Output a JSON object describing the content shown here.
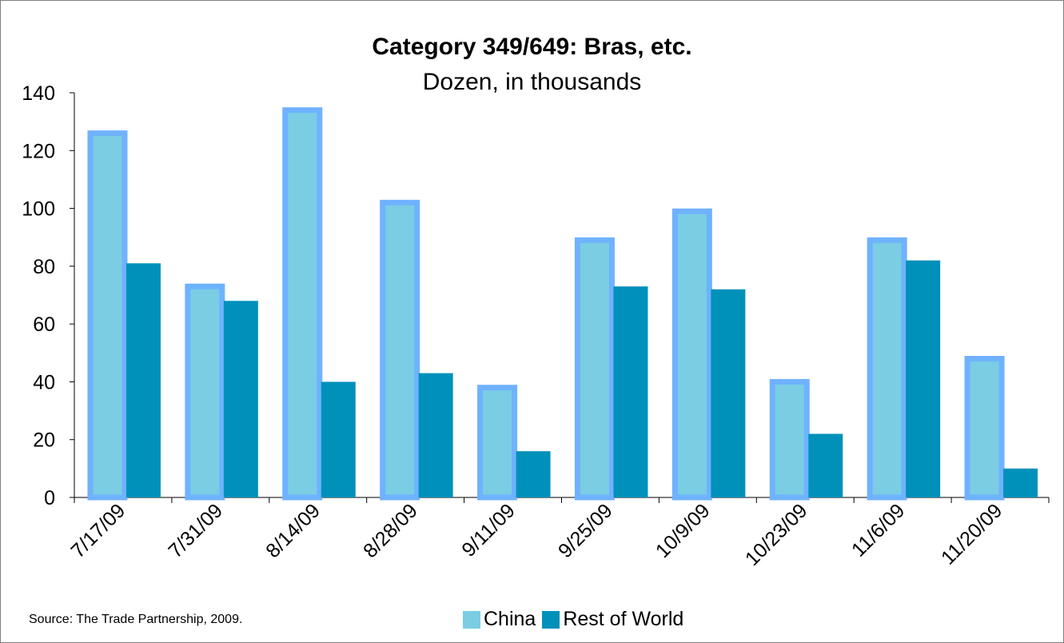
{
  "chart_data": {
    "type": "bar",
    "title": "Category 349/649: Bras, etc.",
    "subtitle": "Dozen, in thousands",
    "categories": [
      "7/17/09",
      "7/31/09",
      "8/14/09",
      "8/28/09",
      "9/11/09",
      "9/25/09",
      "10/9/09",
      "10/23/09",
      "11/6/09",
      "11/20/09"
    ],
    "series": [
      {
        "name": "China",
        "color": "#7acde3",
        "values": [
          126,
          73,
          134,
          102,
          38,
          89,
          99,
          40,
          89,
          48
        ]
      },
      {
        "name": "Rest of World",
        "color": "#0091bb",
        "values": [
          81,
          68,
          40,
          43,
          16,
          73,
          72,
          22,
          82,
          10
        ]
      }
    ],
    "ylim": [
      0,
      140
    ],
    "yticks": [
      "0",
      "20",
      "40",
      "60",
      "80",
      "100",
      "120",
      "140"
    ],
    "grid": false,
    "legend_position": "bottom",
    "source": "Source: The Trade Partnership, 2009."
  }
}
